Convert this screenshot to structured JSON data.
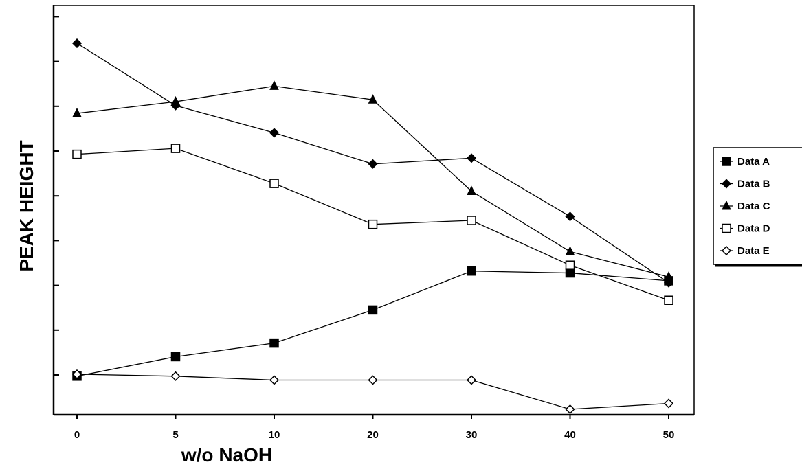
{
  "chart_data": {
    "type": "line",
    "title": "",
    "xlabel": "w/o NaOH",
    "ylabel": "PEAK HEIGHT",
    "categories": [
      "0",
      "5",
      "10",
      "20",
      "30",
      "40",
      "50"
    ],
    "x_positions": [
      0,
      1,
      2,
      3,
      4,
      5,
      6
    ],
    "y_tick_count": 9,
    "ylim": [
      0,
      9.6
    ],
    "grid": false,
    "legend_position": "right",
    "series": [
      {
        "name": "Data A",
        "marker": "square-filled",
        "values": [
          0.85,
          1.35,
          1.7,
          2.55,
          3.55,
          3.5,
          3.3
        ]
      },
      {
        "name": "Data B",
        "marker": "diamond-filled",
        "values": [
          9.4,
          7.8,
          7.1,
          6.3,
          6.45,
          4.95,
          3.25
        ]
      },
      {
        "name": "Data C",
        "marker": "triangle-filled",
        "values": [
          7.6,
          7.9,
          8.3,
          7.95,
          5.6,
          4.05,
          3.4
        ]
      },
      {
        "name": "Data D",
        "marker": "square-open",
        "values": [
          6.55,
          6.7,
          5.8,
          4.75,
          4.85,
          3.7,
          2.8
        ]
      },
      {
        "name": "Data E",
        "marker": "diamond-open",
        "values": [
          0.9,
          0.85,
          0.75,
          0.75,
          0.75,
          0.0,
          0.15
        ]
      }
    ],
    "colors": {
      "line": "#000000",
      "background": "#ffffff"
    }
  }
}
